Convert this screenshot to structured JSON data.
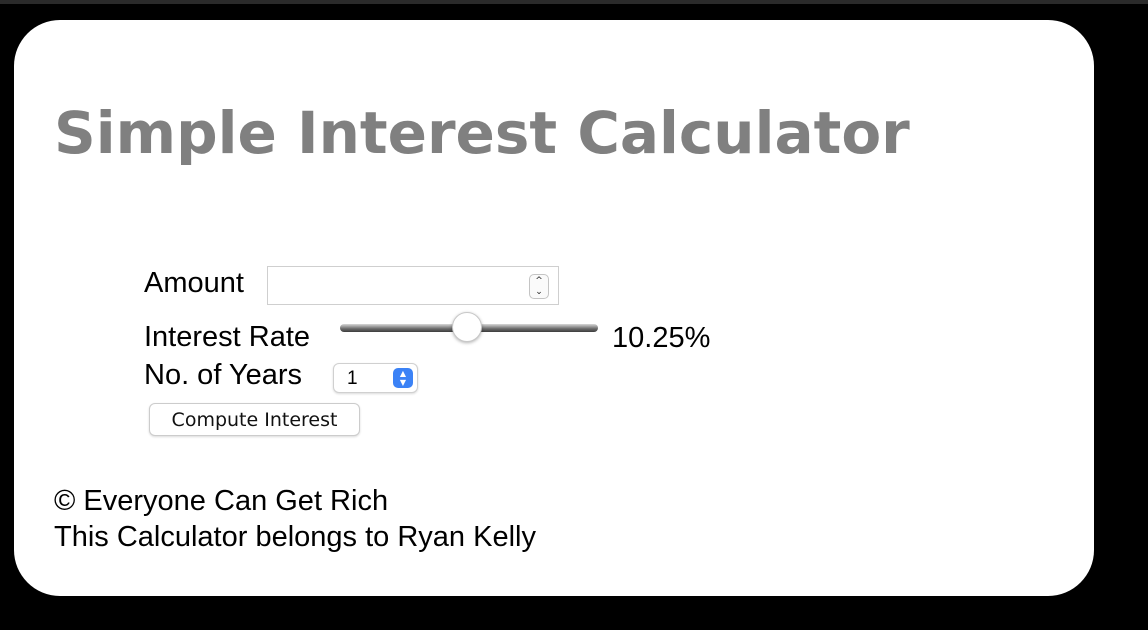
{
  "page": {
    "title": "Simple Interest Calculator"
  },
  "form": {
    "amount_label": "Amount",
    "amount_value": "",
    "interest_rate_label": "Interest Rate",
    "interest_rate_value": "10.25%",
    "interest_rate_slider_fraction": 0.49,
    "years_label": "No. of Years",
    "years_selected": "1",
    "compute_button_label": "Compute Interest"
  },
  "icons": {
    "stepper": "number-stepper-icon",
    "select": "select-chevron-icon"
  },
  "colors": {
    "title": "#808080",
    "select_accent": "#3b82f6",
    "background": "#000000",
    "card": "#ffffff"
  },
  "footer": {
    "copyright": "© Everyone Can Get Rich",
    "owner": "This Calculator belongs to Ryan Kelly"
  }
}
